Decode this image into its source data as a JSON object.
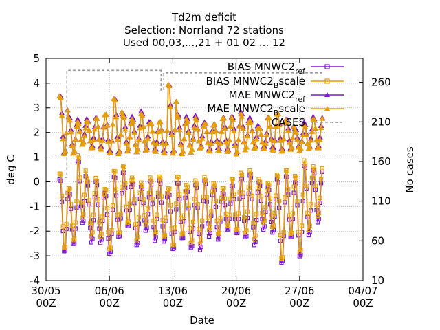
{
  "chart_data": {
    "type": "line",
    "title_lines": [
      "Td2m deficit",
      "Selection: Norrland     72 stations",
      "Used 00,03,...,21 + 01 02 ... 12"
    ],
    "xlabel": "Date",
    "ylabel": "deg C",
    "y2label": "No cases",
    "x_range_days": [
      0,
      35
    ],
    "ylim": [
      -4,
      5
    ],
    "y2lim": [
      10,
      290
    ],
    "yticks": [
      "-4",
      "-3",
      "-2",
      "-1",
      "0",
      "1",
      "2",
      "3",
      "4",
      "5"
    ],
    "y2ticks": [
      "10",
      "60",
      "110",
      "160",
      "210",
      "260"
    ],
    "xticks": [
      {
        "top": "30/05",
        "bottom": "00Z"
      },
      {
        "top": "06/06",
        "bottom": "00Z"
      },
      {
        "top": "13/06",
        "bottom": "00Z"
      },
      {
        "top": "20/06",
        "bottom": "00Z"
      },
      {
        "top": "27/06",
        "bottom": "00Z"
      },
      {
        "top": "04/07",
        "bottom": "00Z"
      }
    ],
    "grid": true,
    "legend_position": "top-right",
    "series": [
      {
        "name": "BIAS MNWC2_ref",
        "label_main": "BIAS MNWC2",
        "label_sub": "ref",
        "color": "#7e19d3",
        "marker": "square",
        "axis": "y"
      },
      {
        "name": "BIAS MNWC2_Bscale",
        "label_main": "BIAS MNWC2",
        "label_sub": "B",
        "label_tail": "scale",
        "color": "#e69f00",
        "marker": "square",
        "axis": "y"
      },
      {
        "name": "MAE MNWC2_ref",
        "label_main": "MAE MNWC2",
        "label_sub": "ref",
        "color": "#7e19d3",
        "marker": "triangle",
        "axis": "y"
      },
      {
        "name": "MAE MNWC2_Bscale",
        "label_main": "MAE MNWC2",
        "label_sub": "B",
        "label_tail": "scale",
        "color": "#e69f00",
        "marker": "triangle",
        "axis": "y"
      },
      {
        "name": "CASES",
        "label_main": "CASES",
        "color": "#999999",
        "marker": "none",
        "axis": "y2"
      }
    ],
    "series_shape": {
      "start_day": 1.5,
      "end_day": 30.5,
      "step_days": 0.125,
      "bias_daily_min": [
        -2.8,
        -2.4,
        -1.5,
        -2.3,
        -2.4,
        -2.9,
        -2.2,
        -1.7,
        -2.4,
        -1.8,
        -2.3,
        -2.4,
        -2.7,
        -2.2,
        -2.5,
        -2.6,
        -2.1,
        -2.3,
        -1.9,
        -2.0,
        -2.1,
        -2.4,
        -1.8,
        -2.0,
        -3.3,
        -2.2,
        -2.9,
        -2.0,
        -1.5
      ],
      "bias_daily_max": [
        0.4,
        -0.3,
        1.0,
        0.1,
        0.2,
        -0.2,
        0.5,
        0.6,
        0.1,
        -0.1,
        0.2,
        0.3,
        -0.2,
        0.2,
        -0.2,
        0.0,
        0.2,
        0.0,
        -0.2,
        0.1,
        0.3,
        0.4,
        0.1,
        0.0,
        0.4,
        0.5,
        0.2,
        0.8,
        0.6
      ],
      "mae_daily_min": [
        1.2,
        1.2,
        1.5,
        1.3,
        1.3,
        1.2,
        1.2,
        1.3,
        1.2,
        1.2,
        1.2,
        1.2,
        1.2,
        1.2,
        1.2,
        1.3,
        1.2,
        1.3,
        1.3,
        1.2,
        1.3,
        1.3,
        1.3,
        1.3,
        1.3,
        1.4,
        1.3,
        1.3,
        1.3
      ],
      "mae_daily_max": [
        3.5,
        2.6,
        2.5,
        2.6,
        2.7,
        2.8,
        3.4,
        2.7,
        2.6,
        2.9,
        2.5,
        2.5,
        4.0,
        2.7,
        2.6,
        2.7,
        2.5,
        2.4,
        2.6,
        2.6,
        2.8,
        2.6,
        2.3,
        2.7,
        2.8,
        2.5,
        2.1,
        2.4,
        2.7
      ],
      "cases_segments": [
        {
          "from_day": 1.5,
          "to_day": 2.3,
          "value": 140
        },
        {
          "from_day": 2.3,
          "to_day": 12.7,
          "value": 275
        },
        {
          "from_day": 12.7,
          "to_day": 13.0,
          "value": 250
        },
        {
          "from_day": 13.0,
          "to_day": 30.5,
          "value": 272
        }
      ]
    }
  }
}
